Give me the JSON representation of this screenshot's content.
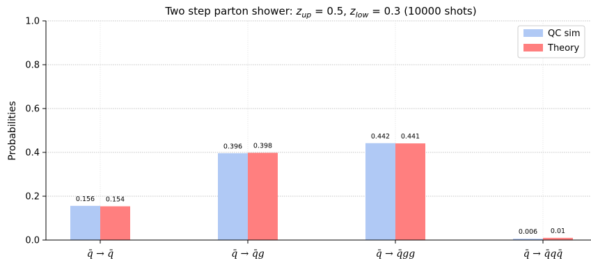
{
  "chart_data": {
    "type": "bar",
    "title": "Two step parton shower: z_up = 0.5, z_low = 0.3 (10000 shots)",
    "title_parts": {
      "prefix": "Two step parton shower: ",
      "z1_base": "z",
      "z1_sub": "up",
      "z1_val": " = 0.5, ",
      "z2_base": "z",
      "z2_sub": "low",
      "z2_val": " = 0.3 (10000 shots)"
    },
    "xlabel": "",
    "ylabel": "Probabilities",
    "ylim": [
      0,
      1.0
    ],
    "yticks": [
      "0.0",
      "0.2",
      "0.4",
      "0.6",
      "0.8",
      "1.0"
    ],
    "grid": "horizontal dotted",
    "legend_position": "top-right",
    "categories": [
      "q̄ → q̄",
      "q̄ → q̄g",
      "q̄ → q̄gg",
      "q̄ → q̄qq̄"
    ],
    "series": [
      {
        "name": "QC sim",
        "color": "#b0c9f5",
        "values": [
          0.156,
          0.396,
          0.442,
          0.006
        ],
        "labels": [
          "0.156",
          "0.396",
          "0.442",
          "0.006"
        ]
      },
      {
        "name": "Theory",
        "color": "#ff7f7f",
        "values": [
          0.154,
          0.398,
          0.441,
          0.01
        ],
        "labels": [
          "0.154",
          "0.398",
          "0.441",
          "0.01"
        ]
      }
    ]
  }
}
